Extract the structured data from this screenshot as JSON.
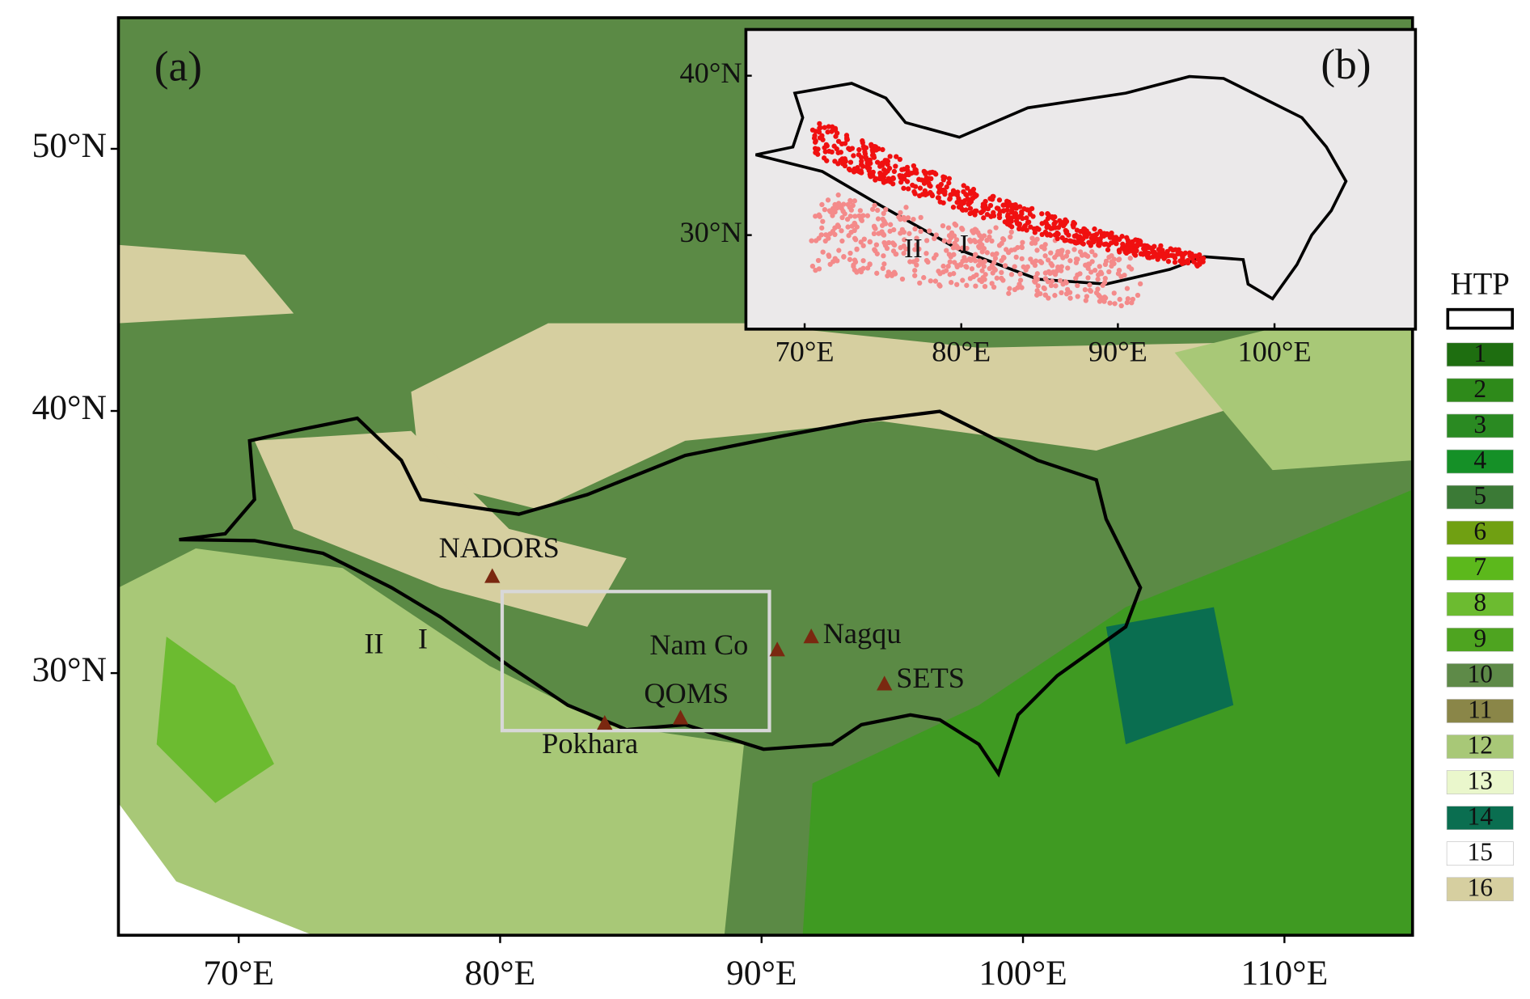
{
  "panels": [
    {
      "label": "(a)",
      "extent": {
        "lon": [
          65.4,
          114.9
        ],
        "lat": [
          20,
          55
        ]
      },
      "lon_ticks": [
        {
          "value": 70,
          "label": "70°E"
        },
        {
          "value": 80,
          "label": "80°E"
        },
        {
          "value": 90,
          "label": "90°E"
        },
        {
          "value": 100,
          "label": "100°E"
        },
        {
          "value": 110,
          "label": "110°E"
        }
      ],
      "lat_ticks": [
        {
          "value": 30,
          "label": "30°N"
        },
        {
          "value": 40,
          "label": "40°N"
        },
        {
          "value": 50,
          "label": "50°N"
        }
      ]
    },
    {
      "label": "(b)",
      "extent": {
        "lon": [
          66.25,
          109
        ],
        "lat": [
          24.1,
          42.9
        ]
      },
      "lon_ticks": [
        {
          "value": 70,
          "label": "70°E"
        },
        {
          "value": 80,
          "label": "80°E"
        },
        {
          "value": 90,
          "label": "90°E"
        },
        {
          "value": 100,
          "label": "100°E"
        }
      ],
      "lat_ticks": [
        {
          "value": 30,
          "label": "30°N"
        },
        {
          "value": 40,
          "label": "40°N"
        }
      ]
    }
  ],
  "sites": [
    {
      "name": "NADORS",
      "lon": 79.7,
      "lat": 33.7
    },
    {
      "name": "Pokhara",
      "lon": 84.0,
      "lat": 28.1
    },
    {
      "name": "QOMS",
      "lon": 86.9,
      "lat": 28.3
    },
    {
      "name": "Nam Co",
      "lon": 90.6,
      "lat": 30.9
    },
    {
      "name": "Nagqu",
      "lon": 91.9,
      "lat": 31.4
    },
    {
      "name": "SETS",
      "lon": 94.7,
      "lat": 29.6
    }
  ],
  "zones": [
    "I",
    "II"
  ],
  "legend": {
    "title": "HTP",
    "items": [
      {
        "label": "1",
        "color": "#1e6e10"
      },
      {
        "label": "2",
        "color": "#2e8a1a"
      },
      {
        "label": "3",
        "color": "#2a8a22"
      },
      {
        "label": "4",
        "color": "#159027"
      },
      {
        "label": "5",
        "color": "#3b7a36"
      },
      {
        "label": "6",
        "color": "#70a012"
      },
      {
        "label": "7",
        "color": "#5cb81c"
      },
      {
        "label": "8",
        "color": "#6cbb30"
      },
      {
        "label": "9",
        "color": "#4ea420"
      },
      {
        "label": "10",
        "color": "#5e8a48"
      },
      {
        "label": "11",
        "color": "#8a8648"
      },
      {
        "label": "12",
        "color": "#a8c877"
      },
      {
        "label": "13",
        "color": "#eaf7cc"
      },
      {
        "label": "14",
        "color": "#0a6e50"
      },
      {
        "label": "15",
        "color": "#ffffff"
      },
      {
        "label": "16",
        "color": "#d6cfa0"
      }
    ]
  }
}
